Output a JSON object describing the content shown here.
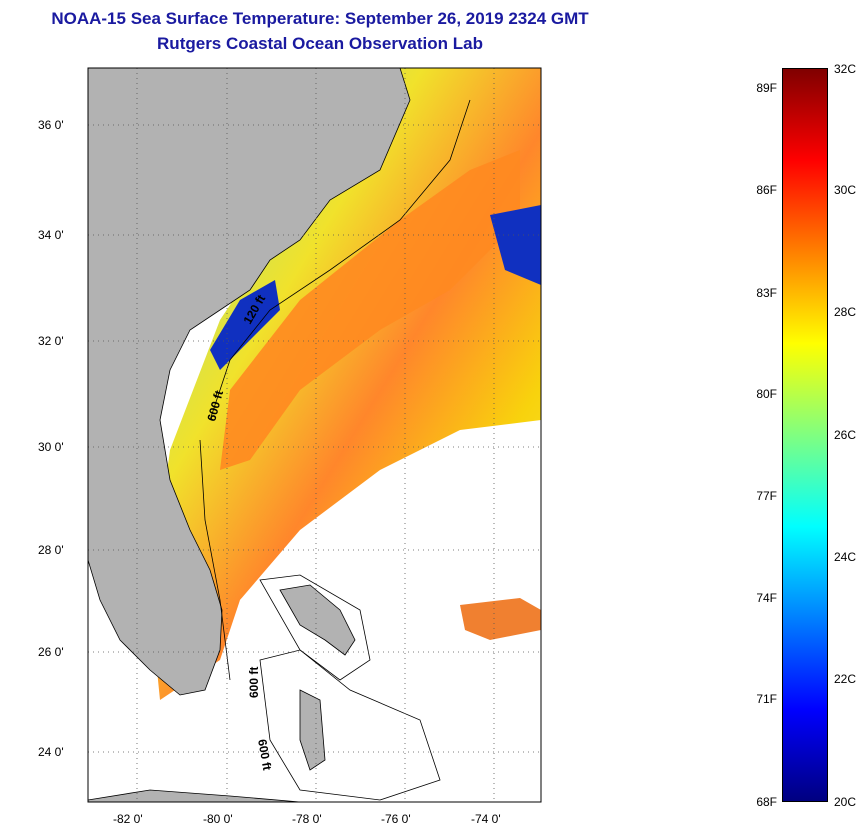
{
  "title": {
    "line1": "NOAA-15 Sea Surface Temperature:  September 26, 2019 2324 GMT",
    "line2": "Rutgers Coastal Ocean Observation Lab"
  },
  "map": {
    "lat_labels": [
      "36 0'",
      "34 0'",
      "32 0'",
      "30 0'",
      "28 0'",
      "26 0'",
      "24 0'"
    ],
    "lon_labels": [
      "-82 0'",
      "-80 0'",
      "-78 0'",
      "-76 0'",
      "-74 0'"
    ],
    "contour_labels": [
      "120 ft",
      "600 ft",
      "600 ft",
      "600 ft"
    ],
    "colors": {
      "land": "#b2b2b2",
      "cloud": "#ffffff"
    }
  },
  "colorbar": {
    "fahrenheit_labels": [
      "89F",
      "86F",
      "83F",
      "80F",
      "77F",
      "74F",
      "71F",
      "68F"
    ],
    "celsius_labels": [
      "32C",
      "30C",
      "28C",
      "26C",
      "24C",
      "22C",
      "20C"
    ],
    "colors": [
      "#800000",
      "#ff0000",
      "#ff8000",
      "#ffff00",
      "#80ff80",
      "#00ffff",
      "#0080ff",
      "#0000ff",
      "#000080"
    ]
  }
}
